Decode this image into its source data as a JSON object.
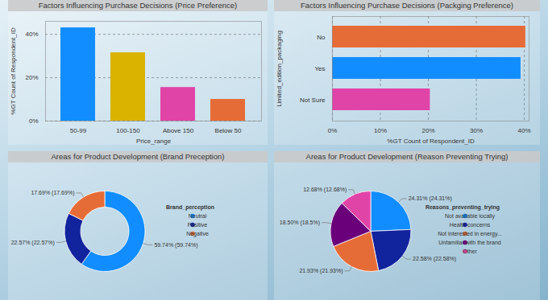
{
  "chart_data": [
    {
      "type": "bar",
      "title": "Factors Influencing Purchase Decisions (Price Preference)",
      "x_label": "Price_range",
      "y_label": "%GT Count of Respondent_ID",
      "categories": [
        "50-99",
        "100-150",
        "Above 150",
        "Below 50"
      ],
      "values": [
        43,
        31.5,
        15.5,
        10
      ],
      "colors": [
        "#118DFF",
        "#D9B300",
        "#E044A7",
        "#E66C37"
      ],
      "ylim": [
        0,
        46
      ],
      "yticks": [
        {
          "value": 0,
          "label": "0%"
        },
        {
          "value": 20,
          "label": "20%"
        },
        {
          "value": 40,
          "label": "40%"
        }
      ],
      "grid": true,
      "data_labels": false
    },
    {
      "type": "bar",
      "orientation": "horizontal",
      "title": "Factors Influencing Purchase Decisions (Packging Preference)",
      "x_label": "%GT Count of Respondent_ID",
      "y_label": "Limited_edition_packaging",
      "categories": [
        "No",
        "Yes",
        "Not Sure"
      ],
      "values": [
        40.3,
        39.3,
        20.4
      ],
      "colors": [
        "#E66C37",
        "#118DFF",
        "#E044A7"
      ],
      "xlim": [
        0,
        41
      ],
      "xticks": [
        {
          "value": 0,
          "label": "0%"
        },
        {
          "value": 10,
          "label": "10%"
        },
        {
          "value": 20,
          "label": "20%"
        },
        {
          "value": 30,
          "label": "30%"
        },
        {
          "value": 40,
          "label": "40%"
        }
      ],
      "grid": true,
      "data_labels": false
    },
    {
      "type": "donut",
      "title": "Areas for Product Development (Brand Preception)",
      "legend_title": "Brand_perception",
      "legend": "right",
      "categories": [
        "Neutral",
        "Positive",
        "Negative"
      ],
      "values": [
        59.74,
        22.57,
        17.69
      ],
      "value_labels": [
        "59.74% (59.74%)",
        "22.57% (22.57%)",
        "17.69% (17.69%)"
      ],
      "colors": [
        "#118DFF",
        "#12239E",
        "#E66C37"
      ],
      "data_labels": true
    },
    {
      "type": "pie",
      "title": "Areas for Product Development (Reason Preventing Trying)",
      "legend_title": "Reasons_preventing_trying",
      "legend": "right",
      "categories": [
        "Not available locally",
        "Health concerns",
        "Not interested in energy...",
        "Unfamiliar with the brand",
        "Other"
      ],
      "values": [
        24.31,
        22.58,
        21.93,
        18.5,
        12.68
      ],
      "value_labels": [
        "24.31% (24.31%)",
        "22.58% (22.58%)",
        "21.93% (21.93%)",
        "18.50% (18.5%)",
        "12.68% (12.68%)"
      ],
      "colors": [
        "#118DFF",
        "#12239E",
        "#E66C37",
        "#6B007B",
        "#E044A7"
      ],
      "data_labels": true
    }
  ]
}
